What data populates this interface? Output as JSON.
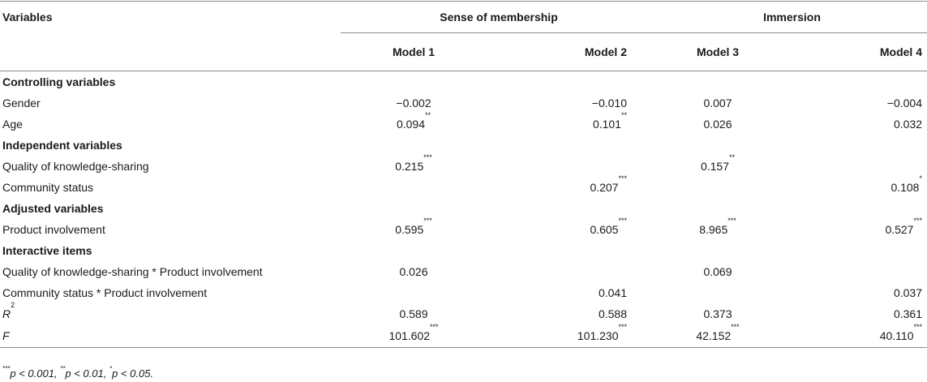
{
  "header": {
    "variables_label": "Variables",
    "group_membership": "Sense of membership",
    "group_immersion": "Immersion",
    "models": [
      "Model 1",
      "Model 2",
      "Model 3",
      "Model 4"
    ]
  },
  "rows": [
    {
      "type": "section",
      "label": "Controlling variables"
    },
    {
      "type": "data",
      "label": "Gender",
      "m1": "−0.002",
      "m2": "−0.010",
      "m3": "0.007",
      "m4": "−0.004"
    },
    {
      "type": "data",
      "label": "Age",
      "m1": "0.094**",
      "m2": "0.101**",
      "m3": "0.026",
      "m4": "0.032"
    },
    {
      "type": "section",
      "label": "Independent variables"
    },
    {
      "type": "data",
      "label": "Quality of knowledge-sharing",
      "m1": "0.215***",
      "m2": "",
      "m3": "0.157**",
      "m4": ""
    },
    {
      "type": "data",
      "label": "Community status",
      "m1": "",
      "m2": "0.207***",
      "m3": "",
      "m4": "0.108*"
    },
    {
      "type": "section",
      "label": "Adjusted variables"
    },
    {
      "type": "data",
      "label": "Product involvement",
      "m1": "0.595***",
      "m2": "0.605***",
      "m3": "8.965***",
      "m4": "0.527***"
    },
    {
      "type": "section",
      "label": "Interactive items"
    },
    {
      "type": "data",
      "label": "Quality of knowledge-sharing * Product involvement",
      "m1": "0.026",
      "m2": "",
      "m3": "0.069",
      "m4": ""
    },
    {
      "type": "data",
      "label": "Community status * Product involvement",
      "m1": "",
      "m2": "0.041",
      "m3": "",
      "m4": "0.037"
    },
    {
      "type": "data",
      "label": "R2",
      "label_base": "R",
      "label_sup": "2",
      "italic": true,
      "m1": "0.589",
      "m2": "0.588",
      "m3": "0.373",
      "m4": "0.361"
    },
    {
      "type": "data",
      "label": "F",
      "italic": true,
      "m1": "101.602***",
      "m2": "101.230***",
      "m3": "42.152***",
      "m4": "40.110***"
    }
  ],
  "footnote": {
    "parts": [
      {
        "sup": "***",
        "text": "p < 0.001, "
      },
      {
        "sup": "**",
        "text": "p < 0.01, "
      },
      {
        "sup": "*",
        "text": "p < 0.05."
      }
    ]
  }
}
